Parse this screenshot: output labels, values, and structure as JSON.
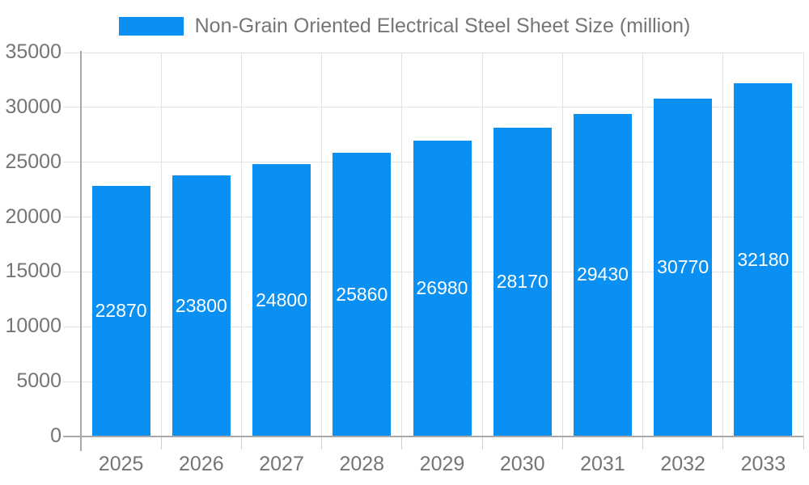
{
  "legend": {
    "label": "Non-Grain Oriented Electrical Steel Sheet Size (million)"
  },
  "chart_data": {
    "type": "bar",
    "title": "",
    "legend_entries": [
      "Non-Grain Oriented Electrical Steel Sheet Size (million)"
    ],
    "legend_position": "top-center",
    "categories": [
      "2025",
      "2026",
      "2027",
      "2028",
      "2029",
      "2030",
      "2031",
      "2032",
      "2033"
    ],
    "values": [
      22870,
      23800,
      24800,
      25860,
      26980,
      28170,
      29430,
      30770,
      32180
    ],
    "xlabel": "",
    "ylabel": "",
    "ylim": [
      0,
      35000
    ],
    "yticks": [
      0,
      5000,
      10000,
      15000,
      20000,
      25000,
      30000,
      35000
    ],
    "grid": true,
    "bar_value_labels": "inside-centered-white"
  },
  "colors": {
    "bar": "#0a90f2",
    "bar_label": "#ffffff",
    "axis_line": "#a8a8a8",
    "gridline": "#e3e3e3",
    "bottom_tick": "#cfcfcf",
    "tick_label": "#757575",
    "legend_text": "#757575",
    "background": "#ffffff"
  }
}
